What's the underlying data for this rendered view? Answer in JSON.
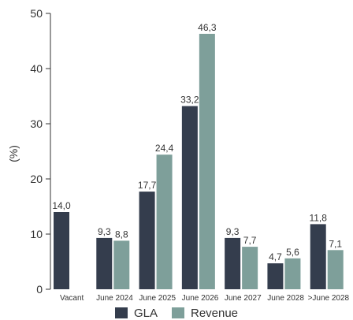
{
  "chart_data": {
    "type": "bar",
    "title": "",
    "xlabel": "",
    "ylabel": "(%)",
    "ylim": [
      0,
      50
    ],
    "yticks": [
      0,
      10,
      20,
      30,
      40,
      50
    ],
    "grid": false,
    "legend_position": "bottom",
    "categories": [
      "Vacant",
      "June 2024",
      "June 2025",
      "June 2026",
      "June 2027",
      "June 2028",
      ">June 2028"
    ],
    "series": [
      {
        "name": "GLA",
        "color": "#343d4d",
        "values": [
          14.0,
          9.3,
          17.7,
          33.2,
          9.3,
          4.7,
          11.8
        ],
        "labels": [
          "14,0",
          "9,3",
          "17,7",
          "33,2",
          "9,3",
          "4,7",
          "11,8"
        ]
      },
      {
        "name": "Revenue",
        "color": "#7e9f9a",
        "values": [
          null,
          8.8,
          24.4,
          46.3,
          7.7,
          5.6,
          7.1
        ],
        "labels": [
          null,
          "8,8",
          "24,4",
          "46,3",
          "7,7",
          "5,6",
          "7,1"
        ]
      }
    ]
  }
}
